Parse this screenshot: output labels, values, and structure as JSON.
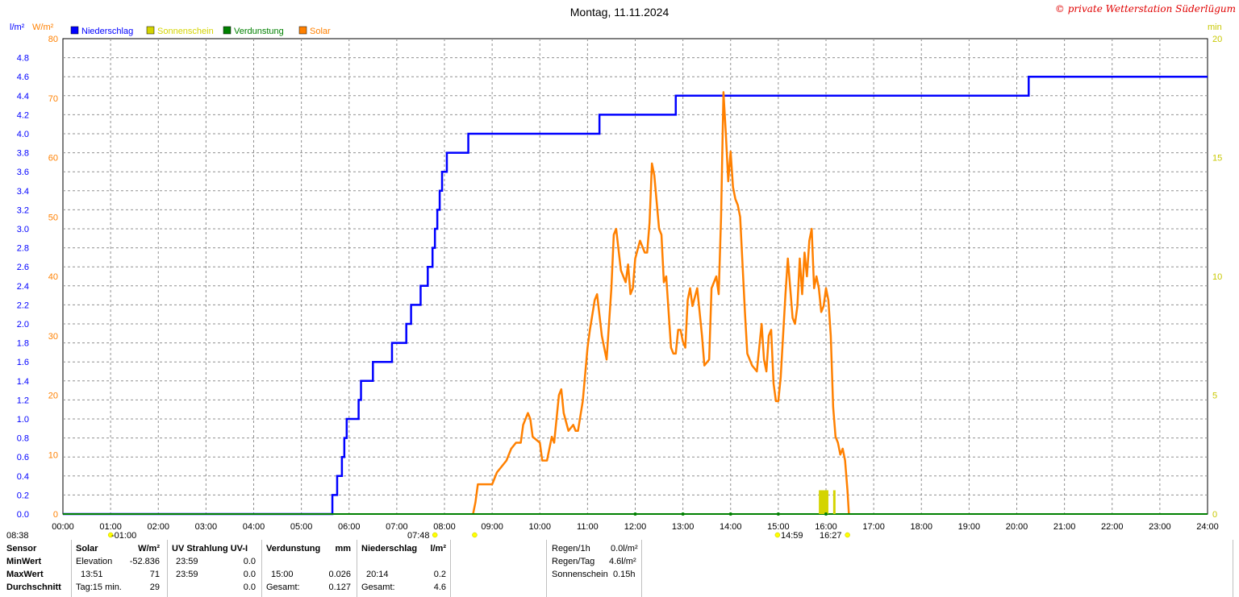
{
  "title": "Montag, 11.11.2024",
  "copyright": "© private Wetterstation Süderlügum",
  "units": {
    "left1": "l/m²",
    "left2": "W/m²",
    "right": "min"
  },
  "legend": [
    {
      "name": "Niederschlag",
      "color": "#0000ff"
    },
    {
      "name": "Sonnenschein",
      "color": "#d4d400"
    },
    {
      "name": "Verdunstung",
      "color": "#008000"
    },
    {
      "name": "Solar",
      "color": "#ff8000"
    }
  ],
  "chart_data": {
    "type": "line",
    "title": "Montag, 11.11.2024",
    "x_ticks": [
      "00:00",
      "01:00",
      "02:00",
      "03:00",
      "04:00",
      "05:00",
      "06:00",
      "07:00",
      "08:00",
      "09:00",
      "10:00",
      "11:00",
      "12:00",
      "13:00",
      "14:00",
      "15:00",
      "16:00",
      "17:00",
      "18:00",
      "19:00",
      "20:00",
      "21:00",
      "22:00",
      "23:00",
      "24:00"
    ],
    "x_range_hours": [
      0,
      24
    ],
    "y_precip_ticks": [
      "0.0",
      "0.2",
      "0.4",
      "0.6",
      "0.8",
      "1.0",
      "1.2",
      "1.4",
      "1.6",
      "1.8",
      "2.0",
      "2.2",
      "2.4",
      "2.6",
      "2.8",
      "3.0",
      "3.2",
      "3.4",
      "3.6",
      "3.8",
      "4.0",
      "4.2",
      "4.4",
      "4.6",
      "4.8"
    ],
    "y_precip_range": [
      0,
      5.0
    ],
    "y_solar_ticks": [
      "0",
      "10",
      "20",
      "30",
      "40",
      "50",
      "60",
      "70",
      "80"
    ],
    "y_solar_range": [
      0,
      80
    ],
    "y_min_ticks": [
      "0",
      "5",
      "10",
      "15",
      "20"
    ],
    "y_min_range": [
      0,
      20
    ],
    "grid": true,
    "series": [
      {
        "name": "Niederschlag",
        "color": "#0000ff",
        "unit": "l/m²",
        "step": true,
        "points": [
          [
            0,
            0
          ],
          [
            5.6,
            0
          ],
          [
            5.65,
            0.2
          ],
          [
            5.75,
            0.4
          ],
          [
            5.85,
            0.6
          ],
          [
            5.9,
            0.8
          ],
          [
            5.95,
            1.0
          ],
          [
            6.2,
            1.2
          ],
          [
            6.25,
            1.4
          ],
          [
            6.5,
            1.6
          ],
          [
            6.9,
            1.8
          ],
          [
            7.2,
            2.0
          ],
          [
            7.3,
            2.2
          ],
          [
            7.5,
            2.4
          ],
          [
            7.65,
            2.6
          ],
          [
            7.75,
            2.8
          ],
          [
            7.8,
            3.0
          ],
          [
            7.85,
            3.2
          ],
          [
            7.9,
            3.4
          ],
          [
            7.95,
            3.6
          ],
          [
            8.05,
            3.8
          ],
          [
            8.5,
            4.0
          ],
          [
            11.25,
            4.2
          ],
          [
            12.85,
            4.4
          ],
          [
            20.25,
            4.6
          ],
          [
            24,
            4.6
          ]
        ]
      },
      {
        "name": "Solar",
        "color": "#ff8000",
        "unit": "W/m²",
        "points": [
          [
            8.6,
            0
          ],
          [
            8.65,
            2
          ],
          [
            8.7,
            5
          ],
          [
            9.0,
            5
          ],
          [
            9.1,
            7
          ],
          [
            9.2,
            8
          ],
          [
            9.3,
            9
          ],
          [
            9.4,
            11
          ],
          [
            9.5,
            12
          ],
          [
            9.6,
            12
          ],
          [
            9.65,
            15
          ],
          [
            9.7,
            16
          ],
          [
            9.75,
            17
          ],
          [
            9.8,
            16
          ],
          [
            9.85,
            13
          ],
          [
            10.0,
            12
          ],
          [
            10.05,
            9
          ],
          [
            10.15,
            9
          ],
          [
            10.25,
            13
          ],
          [
            10.3,
            12
          ],
          [
            10.4,
            20
          ],
          [
            10.45,
            21
          ],
          [
            10.5,
            17
          ],
          [
            10.6,
            14
          ],
          [
            10.7,
            15
          ],
          [
            10.75,
            14
          ],
          [
            10.8,
            14
          ],
          [
            10.9,
            19
          ],
          [
            11.0,
            28
          ],
          [
            11.05,
            31
          ],
          [
            11.15,
            36
          ],
          [
            11.2,
            37
          ],
          [
            11.3,
            30
          ],
          [
            11.4,
            26
          ],
          [
            11.5,
            38
          ],
          [
            11.55,
            47
          ],
          [
            11.6,
            48
          ],
          [
            11.7,
            41
          ],
          [
            11.75,
            40
          ],
          [
            11.8,
            39
          ],
          [
            11.85,
            42
          ],
          [
            11.9,
            37
          ],
          [
            11.95,
            38
          ],
          [
            12.0,
            43
          ],
          [
            12.1,
            46
          ],
          [
            12.2,
            44
          ],
          [
            12.25,
            44
          ],
          [
            12.3,
            49
          ],
          [
            12.35,
            59
          ],
          [
            12.4,
            57
          ],
          [
            12.5,
            48
          ],
          [
            12.55,
            47
          ],
          [
            12.6,
            39
          ],
          [
            12.65,
            40
          ],
          [
            12.7,
            34
          ],
          [
            12.75,
            28
          ],
          [
            12.8,
            27
          ],
          [
            12.85,
            27
          ],
          [
            12.9,
            31
          ],
          [
            12.95,
            31
          ],
          [
            13.0,
            29
          ],
          [
            13.05,
            28
          ],
          [
            13.1,
            36
          ],
          [
            13.15,
            38
          ],
          [
            13.2,
            35
          ],
          [
            13.3,
            38
          ],
          [
            13.4,
            30
          ],
          [
            13.45,
            25
          ],
          [
            13.55,
            26
          ],
          [
            13.6,
            38
          ],
          [
            13.7,
            40
          ],
          [
            13.75,
            37
          ],
          [
            13.8,
            50
          ],
          [
            13.85,
            71
          ],
          [
            13.9,
            64
          ],
          [
            13.95,
            56
          ],
          [
            14.0,
            61
          ],
          [
            14.05,
            55
          ],
          [
            14.1,
            53
          ],
          [
            14.15,
            52
          ],
          [
            14.2,
            50
          ],
          [
            14.3,
            34
          ],
          [
            14.35,
            27
          ],
          [
            14.45,
            25
          ],
          [
            14.55,
            24
          ],
          [
            14.6,
            28
          ],
          [
            14.65,
            32
          ],
          [
            14.7,
            26
          ],
          [
            14.75,
            24
          ],
          [
            14.8,
            30
          ],
          [
            14.85,
            31
          ],
          [
            14.9,
            22
          ],
          [
            14.95,
            19
          ],
          [
            15.0,
            19
          ],
          [
            15.05,
            23
          ],
          [
            15.1,
            30
          ],
          [
            15.15,
            37
          ],
          [
            15.2,
            43
          ],
          [
            15.25,
            38
          ],
          [
            15.3,
            33
          ],
          [
            15.35,
            32
          ],
          [
            15.4,
            35
          ],
          [
            15.45,
            43
          ],
          [
            15.5,
            37
          ],
          [
            15.55,
            44
          ],
          [
            15.6,
            40
          ],
          [
            15.65,
            46
          ],
          [
            15.7,
            48
          ],
          [
            15.75,
            38
          ],
          [
            15.8,
            40
          ],
          [
            15.85,
            38
          ],
          [
            15.9,
            34
          ],
          [
            15.95,
            35
          ],
          [
            16.0,
            38
          ],
          [
            16.05,
            36
          ],
          [
            16.1,
            30
          ],
          [
            16.15,
            18
          ],
          [
            16.2,
            13
          ],
          [
            16.25,
            12
          ],
          [
            16.3,
            10
          ],
          [
            16.35,
            11
          ],
          [
            16.4,
            9
          ],
          [
            16.45,
            4
          ],
          [
            16.48,
            0
          ]
        ]
      },
      {
        "name": "Verdunstung",
        "color": "#008000",
        "unit": "mm",
        "points": [
          [
            0,
            0
          ],
          [
            24,
            0
          ]
        ]
      },
      {
        "name": "Sonnenschein",
        "color": "#d4d400",
        "unit": "min",
        "bars": [
          [
            15.85,
            16.05,
            1.0
          ],
          [
            16.15,
            16.2,
            1.0
          ]
        ]
      }
    ],
    "markers": [
      {
        "label": "08:38",
        "hour": 8.633,
        "color": "#ffff00"
      },
      {
        "label": "-01:00",
        "hour": 1.0,
        "color": "#ffff00"
      },
      {
        "label": "07:48",
        "hour": 7.8,
        "color": "#ffff00"
      },
      {
        "label": "14:59",
        "hour": 14.983,
        "color": "#ffff00"
      },
      {
        "label": "16:27",
        "hour": 16.45,
        "color": "#ffff00"
      }
    ]
  },
  "table": {
    "col1": {
      "header": "Sensor",
      "rows": [
        "MinWert",
        "MaxWert",
        "Durchschnitt"
      ]
    },
    "solar": {
      "header": "Solar",
      "unit": "W/m²",
      "min_label": "Elevation",
      "min_val": "-52.836",
      "max_label": "13:51",
      "max_val": "71",
      "avg_label": "Tag:15 min.",
      "avg_val": "29"
    },
    "uv": {
      "header": "UV Strahlung UV-I",
      "min_label": "23:59",
      "min_val": "0.0",
      "max_label": "23:59",
      "max_val": "0.0",
      "avg_val": "0.0"
    },
    "evap": {
      "header": "Verdunstung",
      "unit": "mm",
      "max_label": "15:00",
      "max_val": "0.026",
      "avg_label": "Gesamt:",
      "avg_val": "0.127"
    },
    "precip": {
      "header": "Niederschlag",
      "unit": "l/m²",
      "max_label": "20:14",
      "max_val": "0.2",
      "avg_label": "Gesamt:",
      "avg_val": "4.6"
    },
    "summary": [
      {
        "label": "Regen/1h",
        "value": "0.0l/m²"
      },
      {
        "label": "Regen/Tag",
        "value": "4.6l/m²"
      },
      {
        "label": "Sonnenschein",
        "value": "0.15h"
      }
    ]
  }
}
